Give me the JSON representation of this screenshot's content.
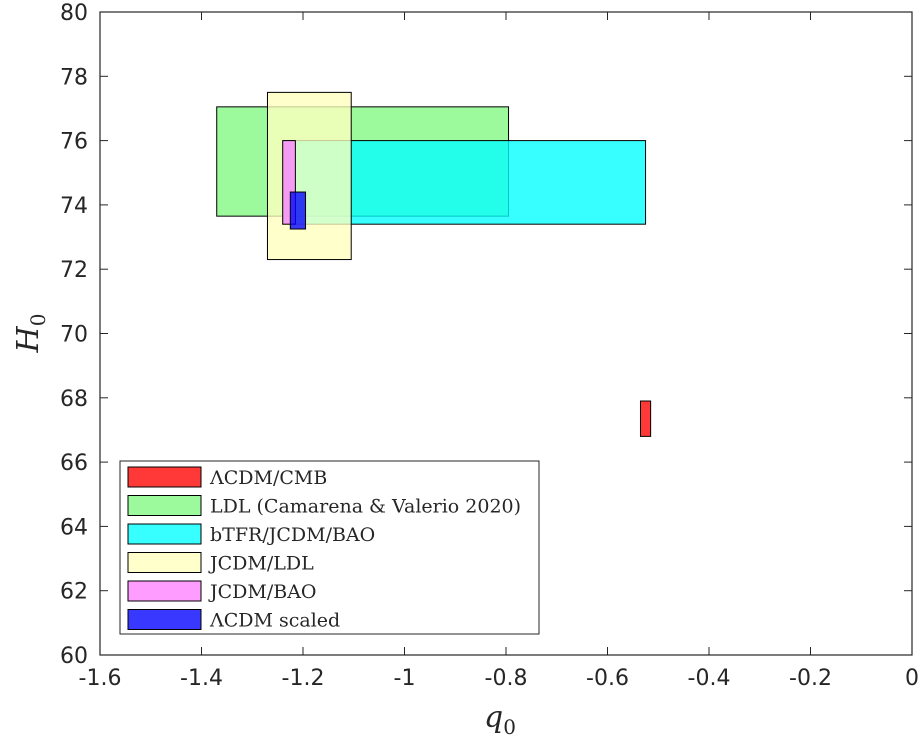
{
  "chart_data": {
    "type": "rectangle-regions",
    "xlabel": "q",
    "xlabel_sub": "0",
    "ylabel": "H",
    "ylabel_sub": "0",
    "xlim": [
      -1.6,
      0
    ],
    "ylim": [
      60,
      80
    ],
    "xticks": [
      -1.6,
      -1.4,
      -1.2,
      -1,
      -0.8,
      -0.6,
      -0.4,
      -0.2,
      0
    ],
    "xtick_labels": [
      "-1.6",
      "-1.4",
      "-1.2",
      "-1",
      "-0.8",
      "-0.6",
      "-0.4",
      "-0.2",
      "0"
    ],
    "yticks": [
      60,
      62,
      64,
      66,
      68,
      70,
      72,
      74,
      76,
      78,
      80
    ],
    "ytick_labels": [
      "60",
      "62",
      "64",
      "66",
      "68",
      "70",
      "72",
      "74",
      "76",
      "78",
      "80"
    ],
    "grid": false,
    "legend_position": "bottom-left",
    "series": [
      {
        "name": "ΛCDM/CMB",
        "color": "#ff0000",
        "x": [
          -0.535,
          -0.515
        ],
        "y": [
          66.8,
          67.9
        ]
      },
      {
        "name": "LDL (Camarena & Valerio 2020)",
        "color": "#80f880",
        "x": [
          -1.37,
          -0.795
        ],
        "y": [
          73.65,
          77.05
        ]
      },
      {
        "name": "bTFR/JCDM/BAO",
        "color": "#00ffff",
        "x": [
          -1.24,
          -0.525
        ],
        "y": [
          73.4,
          76.0
        ]
      },
      {
        "name": "JCDM/LDL",
        "color": "#ffffbe",
        "x": [
          -1.27,
          -1.105
        ],
        "y": [
          72.3,
          77.5
        ]
      },
      {
        "name": "JCDM/BAO",
        "color": "#ff80ff",
        "x": [
          -1.24,
          -1.215
        ],
        "y": [
          73.4,
          76.0
        ]
      },
      {
        "name": "ΛCDM scaled",
        "color": "#0000ff",
        "x": [
          -1.225,
          -1.195
        ],
        "y": [
          73.25,
          74.4
        ]
      }
    ]
  }
}
